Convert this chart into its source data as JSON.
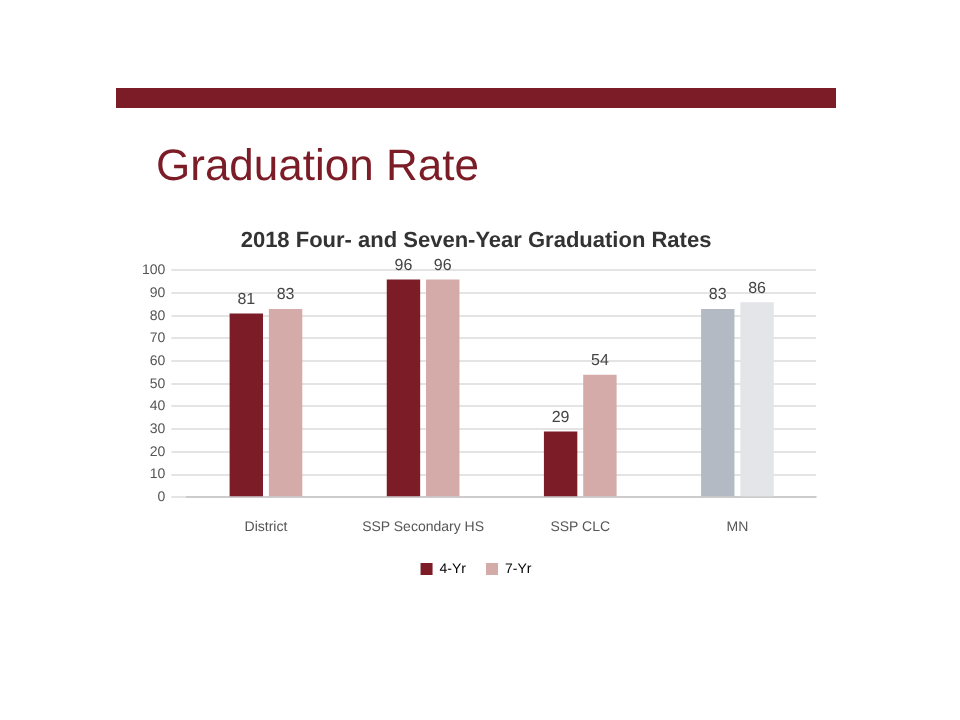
{
  "chart_data": {
    "type": "bar",
    "title": "Graduation Rate",
    "subtitle": "2018 Four- and Seven-Year Graduation Rates",
    "categories": [
      "District",
      "SSP Secondary HS",
      "SSP CLC",
      "MN"
    ],
    "series": [
      {
        "name": "4-Yr",
        "color": "#7b1c27",
        "colors": [
          "#7b1c27",
          "#7b1c27",
          "#7b1c27",
          "#b4bac3"
        ],
        "values": [
          81,
          96,
          29,
          83
        ]
      },
      {
        "name": "7-Yr",
        "color": "#d4aba9",
        "colors": [
          "#d4aba9",
          "#d4aba9",
          "#d4aba9",
          "#e3e5e9"
        ],
        "values": [
          83,
          96,
          54,
          86
        ]
      }
    ],
    "ylim": [
      0,
      100
    ],
    "yticks": [
      0,
      10,
      20,
      30,
      40,
      50,
      60,
      70,
      80,
      90,
      100
    ],
    "grid": "y",
    "legend": "bottom",
    "data_labels": true
  }
}
